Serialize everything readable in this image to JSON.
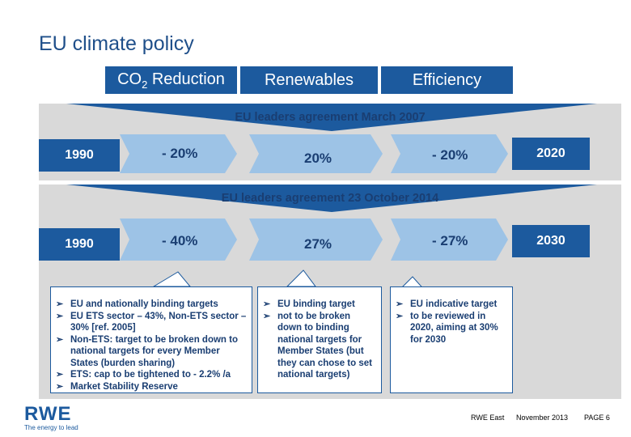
{
  "title": "EU climate policy",
  "tabs": {
    "co2_main": "CO",
    "co2_sub": "2",
    "co2_rest": " Reduction",
    "renewables": "Renewables",
    "efficiency": "Efficiency"
  },
  "band1": {
    "label": "EU leaders agreement March 2007",
    "start_year": "1990",
    "co2": "- 20%",
    "renewables": "20%",
    "efficiency": "- 20%",
    "end_year": "2020"
  },
  "band2": {
    "label": "EU leaders agreement 23 October 2014",
    "start_year": "1990",
    "co2": "- 40%",
    "renewables": "27%",
    "efficiency": "- 27%",
    "end_year": "2030"
  },
  "notes": {
    "co2": [
      "EU and nationally binding targets",
      "EU ETS sector – 43%, Non-ETS sector – 30% [ref. 2005]",
      "Non-ETS: target to be broken down to national targets for every Member States (burden sharing)",
      "ETS: cap to be tightened to - 2.2% /a",
      "Market Stability Reserve"
    ],
    "renewables": [
      "EU binding target",
      "not to be broken down to binding national targets for Member States (but they can chose to set national targets)"
    ],
    "efficiency": [
      "EU indicative target",
      "to be reviewed in 2020, aiming at 30% for 2030"
    ]
  },
  "footer": {
    "logo": "RWE",
    "tagline": "The energy to lead",
    "company": "RWE East",
    "date": "November 2013",
    "page": "PAGE 6"
  },
  "colors": {
    "primary_blue": "#1c5a9e",
    "light_blue": "#9dc3e6",
    "band_gray": "#d9d9d9"
  }
}
